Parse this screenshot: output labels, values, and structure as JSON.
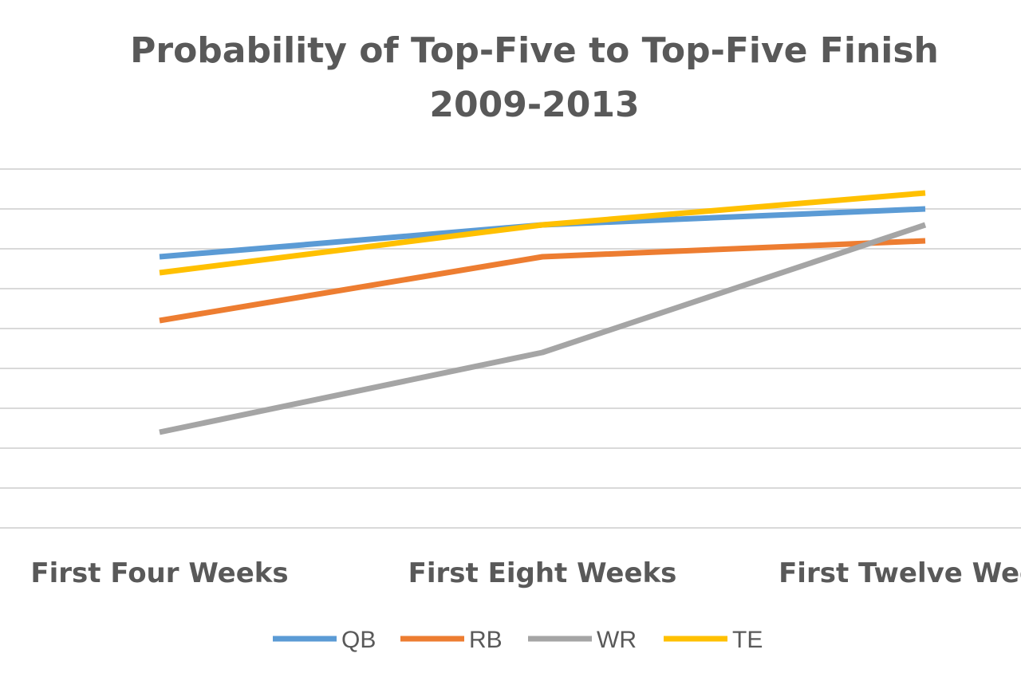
{
  "chart_data": {
    "type": "line",
    "title": "Probability of Top-Five to Top-Five Finish",
    "subtitle": "2009-2013",
    "categories": [
      "First Four Weeks",
      "First Eight Weeks",
      "First Twelve Weeks"
    ],
    "series": [
      {
        "name": "QB",
        "color": "#5b9bd5",
        "values": [
          0.68,
          0.76,
          0.8
        ]
      },
      {
        "name": "RB",
        "color": "#ed7d31",
        "values": [
          0.52,
          0.68,
          0.72
        ]
      },
      {
        "name": "WR",
        "color": "#a5a5a5",
        "values": [
          0.24,
          0.44,
          0.76
        ]
      },
      {
        "name": "TE",
        "color": "#ffc000",
        "values": [
          0.64,
          0.76,
          0.84
        ]
      }
    ],
    "ylim": [
      0,
      0.9
    ],
    "y_gridlines": 9,
    "grid": true,
    "y_tick_labels_visible": false,
    "legend_position": "bottom"
  }
}
